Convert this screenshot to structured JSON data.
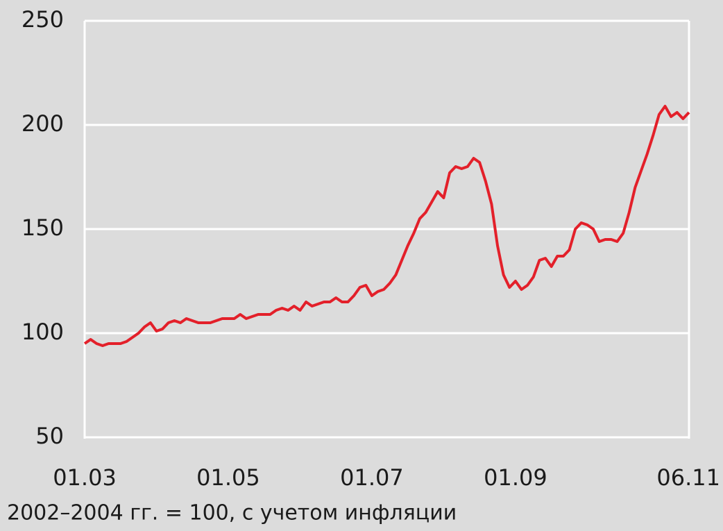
{
  "chart_data": {
    "type": "line",
    "categories": [
      "01.03",
      null,
      null,
      null,
      null,
      null,
      null,
      null,
      null,
      null,
      null,
      null,
      null,
      null,
      null,
      null,
      null,
      null,
      null,
      null,
      null,
      null,
      null,
      null,
      "01.05",
      null,
      null,
      null,
      null,
      null,
      null,
      null,
      null,
      null,
      null,
      null,
      null,
      null,
      null,
      null,
      null,
      null,
      null,
      null,
      null,
      null,
      null,
      null,
      "01.07",
      null,
      null,
      null,
      null,
      null,
      null,
      null,
      null,
      null,
      null,
      null,
      null,
      null,
      null,
      null,
      null,
      null,
      null,
      null,
      null,
      null,
      null,
      null,
      "01.09",
      null,
      null,
      null,
      null,
      null,
      null,
      null,
      null,
      null,
      null,
      null,
      null,
      null,
      null,
      null,
      null,
      null,
      null,
      null,
      null,
      null,
      null,
      null,
      null,
      null,
      null,
      null,
      null,
      "06.11"
    ],
    "values": [
      95,
      97,
      95,
      94,
      95,
      95,
      95,
      96,
      98,
      100,
      103,
      105,
      101,
      102,
      105,
      106,
      105,
      107,
      106,
      105,
      105,
      105,
      106,
      107,
      107,
      107,
      109,
      107,
      108,
      109,
      109,
      109,
      111,
      112,
      111,
      113,
      111,
      115,
      113,
      114,
      115,
      115,
      117,
      115,
      115,
      118,
      122,
      123,
      118,
      120,
      121,
      124,
      128,
      135,
      142,
      148,
      155,
      158,
      163,
      168,
      165,
      177,
      180,
      179,
      180,
      184,
      182,
      173,
      162,
      142,
      128,
      122,
      125,
      121,
      123,
      127,
      135,
      136,
      132,
      137,
      137,
      140,
      150,
      153,
      152,
      150,
      144,
      145,
      145,
      144,
      148,
      158,
      170,
      178,
      186,
      195,
      205,
      209,
      204,
      206,
      203,
      206
    ],
    "color": "#e3202a",
    "ylim": [
      50,
      250
    ],
    "yticks": [
      50,
      100,
      150,
      200,
      250
    ],
    "grid": true,
    "footnote": "2002–2004 гг. = 100, с учетом инфляции"
  }
}
